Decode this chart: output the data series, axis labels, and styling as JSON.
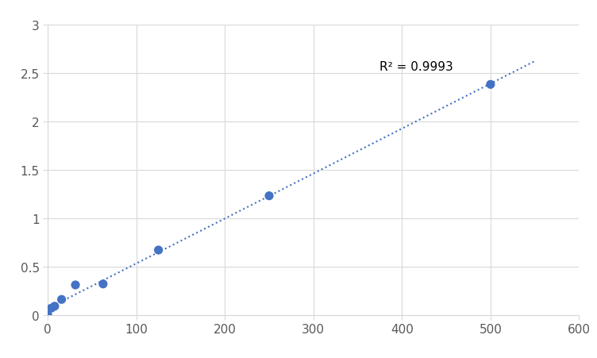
{
  "x": [
    0,
    3.9,
    7.8,
    15.6,
    31.25,
    62.5,
    125,
    250,
    500
  ],
  "y": [
    0.0,
    0.07,
    0.09,
    0.16,
    0.31,
    0.32,
    0.67,
    1.23,
    2.38
  ],
  "dot_color": "#4472C4",
  "line_color": "#4472C4",
  "line_style": "dotted",
  "line_width": 1.5,
  "marker_size": 65,
  "xlim": [
    0,
    600
  ],
  "ylim": [
    0,
    3
  ],
  "xticks": [
    0,
    100,
    200,
    300,
    400,
    500,
    600
  ],
  "yticks": [
    0,
    0.5,
    1.0,
    1.5,
    2.0,
    2.5,
    3.0
  ],
  "r2_text": "R² = 0.9993",
  "r2_x": 375,
  "r2_y": 2.57,
  "grid_color": "#D9D9D9",
  "bg_color": "#FFFFFF",
  "font_size": 11,
  "tick_color": "#595959"
}
